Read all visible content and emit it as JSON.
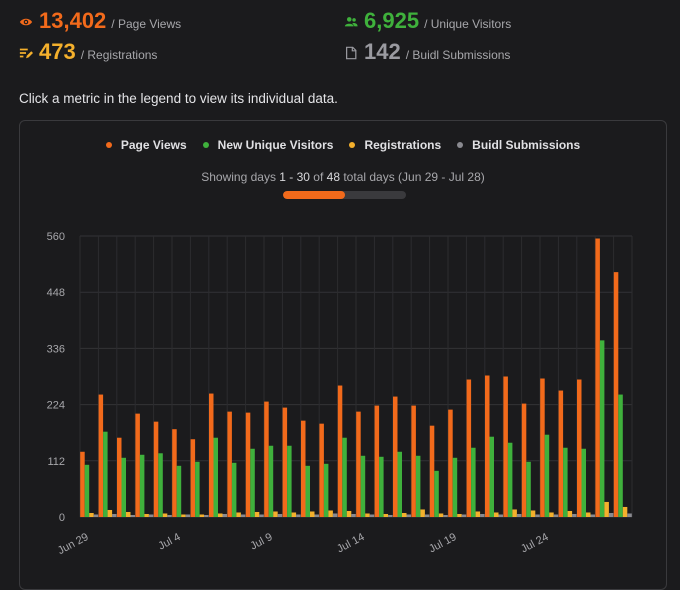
{
  "stats": [
    {
      "value": "13,402",
      "label": "/ Page Views",
      "icon": "eye-icon",
      "color": "#f26a1b"
    },
    {
      "value": "6,925",
      "label": "/ Unique Visitors",
      "icon": "users-icon",
      "color": "#3fb13c"
    },
    {
      "value": "473",
      "label": "/ Registrations",
      "icon": "list-pen-icon",
      "color": "#f4b02c"
    },
    {
      "value": "142",
      "label": "/ Buidl Submissions",
      "icon": "document-icon",
      "color": "#9a9aa0"
    }
  ],
  "hint": "Click a metric in the legend to view its individual data.",
  "legend": [
    {
      "label": "Page Views",
      "color": "#f26a1b"
    },
    {
      "label": "New Unique Visitors",
      "color": "#3fb13c"
    },
    {
      "label": "Registrations",
      "color": "#f4b02c"
    },
    {
      "label": "Buidl Submissions",
      "color": "#8a8a90"
    }
  ],
  "showing": {
    "prefix": "Showing days ",
    "range": "1 - 30",
    "middle": " of ",
    "total": "48",
    "suffix": " total days (Jun 29 - Jul 28)",
    "progress": 0.5
  },
  "chart_data": {
    "type": "bar",
    "ylim": [
      0,
      560
    ],
    "yticks": [
      0,
      112,
      224,
      336,
      448,
      560
    ],
    "categories": [
      "Jun 29",
      "Jun 30",
      "Jul 1",
      "Jul 2",
      "Jul 3",
      "Jul 4",
      "Jul 5",
      "Jul 6",
      "Jul 7",
      "Jul 8",
      "Jul 9",
      "Jul 10",
      "Jul 11",
      "Jul 12",
      "Jul 13",
      "Jul 14",
      "Jul 15",
      "Jul 16",
      "Jul 17",
      "Jul 18",
      "Jul 19",
      "Jul 20",
      "Jul 21",
      "Jul 22",
      "Jul 23",
      "Jul 24",
      "Jul 25",
      "Jul 26",
      "Jul 27",
      "Jul 28"
    ],
    "xtick_labels": [
      {
        "index": 0,
        "label": "Jun 29"
      },
      {
        "index": 5,
        "label": "Jul 4"
      },
      {
        "index": 10,
        "label": "Jul 9"
      },
      {
        "index": 15,
        "label": "Jul 14"
      },
      {
        "index": 20,
        "label": "Jul 19"
      },
      {
        "index": 25,
        "label": "Jul 24"
      }
    ],
    "series": [
      {
        "name": "Page Views",
        "color": "#f26a1b",
        "values": [
          130,
          244,
          158,
          206,
          190,
          175,
          155,
          246,
          210,
          208,
          230,
          218,
          192,
          186,
          262,
          210,
          222,
          240,
          222,
          182,
          214,
          274,
          282,
          280,
          226,
          276,
          252,
          274,
          555,
          488
        ]
      },
      {
        "name": "New Unique Visitors",
        "color": "#3fb13c",
        "values": [
          104,
          170,
          118,
          124,
          127,
          102,
          110,
          158,
          108,
          136,
          142,
          142,
          102,
          106,
          158,
          122,
          120,
          130,
          122,
          92,
          118,
          138,
          160,
          148,
          110,
          164,
          138,
          136,
          352,
          244
        ]
      },
      {
        "name": "Registrations",
        "color": "#f4b02c",
        "values": [
          8,
          14,
          10,
          6,
          7,
          5,
          5,
          7,
          9,
          10,
          11,
          9,
          11,
          13,
          12,
          7,
          6,
          8,
          15,
          7,
          6,
          11,
          9,
          15,
          13,
          9,
          12,
          9,
          30,
          20
        ]
      },
      {
        "name": "Buidl Submissions",
        "color": "#8a8a90",
        "values": [
          5,
          6,
          4,
          5,
          4,
          5,
          4,
          6,
          5,
          5,
          6,
          5,
          5,
          7,
          6,
          5,
          4,
          5,
          5,
          4,
          5,
          6,
          5,
          6,
          5,
          5,
          6,
          5,
          8,
          7
        ]
      }
    ]
  }
}
